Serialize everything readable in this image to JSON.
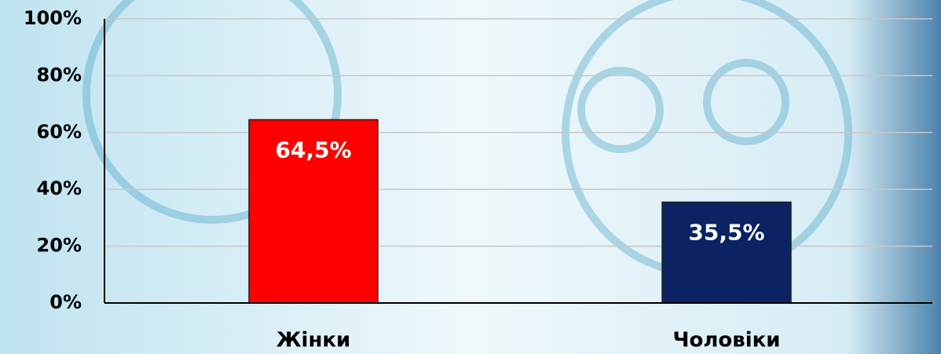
{
  "chart_data": {
    "type": "bar",
    "categories": [
      "Жінки",
      "Чоловіки"
    ],
    "values": [
      64.5,
      35.5
    ],
    "value_labels": [
      "64,5%",
      "35,5%"
    ],
    "colors": [
      "#ff0000",
      "#0b2263"
    ],
    "ylim": [
      0,
      100
    ],
    "yticks": [
      {
        "value": 0,
        "label": "0%"
      },
      {
        "value": 20,
        "label": "20%"
      },
      {
        "value": 40,
        "label": "40%"
      },
      {
        "value": 60,
        "label": "60%"
      },
      {
        "value": 80,
        "label": "80%"
      },
      {
        "value": 100,
        "label": "100%"
      }
    ],
    "grid": true
  }
}
